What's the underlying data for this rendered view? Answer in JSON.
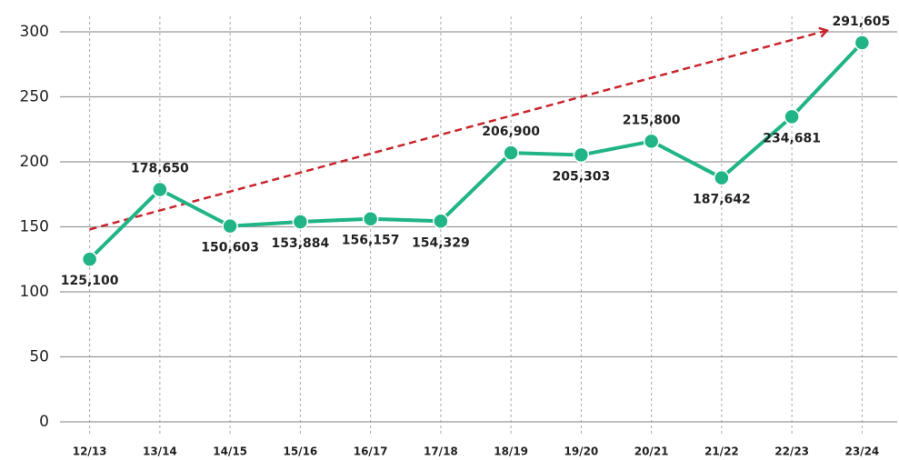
{
  "chart_data": {
    "type": "line",
    "categories": [
      "12/13",
      "13/14",
      "14/15",
      "15/16",
      "16/17",
      "17/18",
      "18/19",
      "19/20",
      "20/21",
      "21/22",
      "22/23",
      "23/24"
    ],
    "series": [
      {
        "color": "#20b486",
        "values": [
          125.1,
          178.65,
          150.603,
          153.884,
          156.157,
          154.329,
          206.9,
          205.303,
          215.8,
          187.642,
          234.681,
          291.605
        ],
        "value_labels": [
          "125,100",
          "178,650",
          "150,603",
          "153,884",
          "156,157",
          "154,329",
          "206,900",
          "205,303",
          "215,800",
          "187,642",
          "234,681",
          "291,605"
        ]
      }
    ],
    "trend": {
      "color": "#c9252c",
      "x": [
        0,
        10.5
      ],
      "values": [
        148,
        301
      ]
    },
    "ylim": [
      0,
      300
    ],
    "yticks": [
      0,
      50,
      100,
      150,
      200,
      250,
      300
    ],
    "grid": true
  }
}
